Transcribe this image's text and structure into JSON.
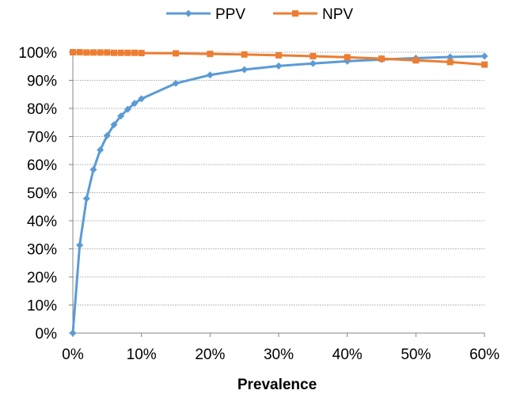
{
  "chart_data": {
    "type": "line",
    "title": "",
    "xlabel": "Prevalence",
    "ylabel": "",
    "xlim": [
      0,
      60
    ],
    "ylim": [
      0,
      100
    ],
    "x_ticks": [
      "0%",
      "10%",
      "20%",
      "30%",
      "40%",
      "50%",
      "60%"
    ],
    "y_ticks": [
      "0%",
      "10%",
      "20%",
      "30%",
      "40%",
      "50%",
      "60%",
      "70%",
      "80%",
      "90%",
      "100%"
    ],
    "grid": true,
    "legend_position": "top",
    "series": [
      {
        "name": "PPV",
        "color": "#5b9bd5",
        "marker": "diamond",
        "x": [
          0,
          1,
          2,
          3,
          4,
          5,
          6,
          7,
          8,
          9,
          10,
          15,
          20,
          25,
          30,
          35,
          40,
          45,
          50,
          55,
          60
        ],
        "values": [
          0,
          31.3,
          47.9,
          58.2,
          65.2,
          70.3,
          74.2,
          77.3,
          79.7,
          81.8,
          83.4,
          88.9,
          91.9,
          93.8,
          95.1,
          96.0,
          96.8,
          97.4,
          97.9,
          98.3,
          98.6
        ]
      },
      {
        "name": "NPV",
        "color": "#ed7d31",
        "marker": "square",
        "x": [
          0,
          1,
          2,
          3,
          4,
          5,
          6,
          7,
          8,
          9,
          10,
          15,
          20,
          25,
          30,
          35,
          40,
          45,
          50,
          55,
          60
        ],
        "values": [
          100,
          100,
          99.9,
          99.9,
          99.9,
          99.9,
          99.8,
          99.8,
          99.8,
          99.8,
          99.7,
          99.6,
          99.4,
          99.2,
          98.9,
          98.6,
          98.2,
          97.7,
          97.1,
          96.5,
          95.6
        ]
      }
    ]
  }
}
